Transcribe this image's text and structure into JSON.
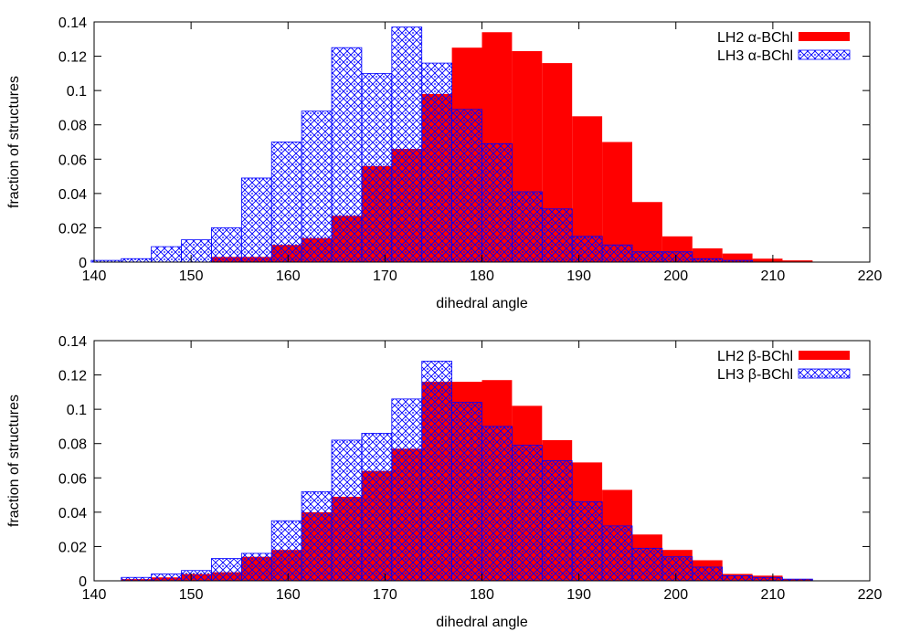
{
  "chart_data": [
    {
      "type": "bar",
      "xlabel": "dihedral angle",
      "ylabel": "fraction of structures",
      "xlim": [
        140,
        220
      ],
      "ylim": [
        0,
        0.14
      ],
      "x_ticks": [
        "140",
        "150",
        "160",
        "170",
        "180",
        "190",
        "200",
        "210",
        "220"
      ],
      "y_ticks": [
        "0",
        "0.02",
        "0.04",
        "0.06",
        "0.08",
        "0.1",
        "0.12",
        "0.14"
      ],
      "grid": false,
      "legend_position": "top-right",
      "bin_width": 3.1,
      "bin_starts": [
        139.7,
        142.8,
        145.9,
        149.0,
        152.1,
        155.2,
        158.3,
        161.4,
        164.5,
        167.6,
        170.7,
        173.8,
        176.9,
        180.0,
        183.1,
        186.2,
        189.3,
        192.4,
        195.5,
        198.6,
        201.7,
        204.8,
        207.9,
        211.0,
        214.1
      ],
      "series": [
        {
          "name": "LH2 α-BChl",
          "color": "#ff0000",
          "fill": "solid",
          "values": [
            0,
            0,
            0,
            0,
            0.003,
            0.003,
            0.01,
            0.014,
            0.027,
            0.056,
            0.066,
            0.098,
            0.125,
            0.134,
            0.123,
            0.116,
            0.085,
            0.07,
            0.035,
            0.015,
            0.008,
            0.005,
            0.002,
            0.001,
            0
          ]
        },
        {
          "name": "LH3 α-BChl",
          "color": "#0000ff",
          "fill": "crosshatch",
          "values": [
            0.001,
            0.002,
            0.009,
            0.013,
            0.02,
            0.049,
            0.07,
            0.088,
            0.125,
            0.11,
            0.137,
            0.116,
            0.089,
            0.069,
            0.041,
            0.031,
            0.015,
            0.01,
            0.006,
            0.006,
            0.002,
            0.001,
            0,
            0,
            0
          ]
        }
      ]
    },
    {
      "type": "bar",
      "xlabel": "dihedral angle",
      "ylabel": "fraction of structures",
      "xlim": [
        140,
        220
      ],
      "ylim": [
        0,
        0.14
      ],
      "x_ticks": [
        "140",
        "150",
        "160",
        "170",
        "180",
        "190",
        "200",
        "210",
        "220"
      ],
      "y_ticks": [
        "0",
        "0.02",
        "0.04",
        "0.06",
        "0.08",
        "0.1",
        "0.12",
        "0.14"
      ],
      "grid": false,
      "legend_position": "top-right",
      "bin_width": 3.1,
      "bin_starts": [
        139.7,
        142.8,
        145.9,
        149.0,
        152.1,
        155.2,
        158.3,
        161.4,
        164.5,
        167.6,
        170.7,
        173.8,
        176.9,
        180.0,
        183.1,
        186.2,
        189.3,
        192.4,
        195.5,
        198.6,
        201.7,
        204.8,
        207.9,
        211.0,
        214.1
      ],
      "series": [
        {
          "name": "LH2 β-BChl",
          "color": "#ff0000",
          "fill": "solid",
          "values": [
            0,
            0.001,
            0.002,
            0.004,
            0.005,
            0.014,
            0.018,
            0.04,
            0.049,
            0.064,
            0.077,
            0.116,
            0.116,
            0.117,
            0.102,
            0.082,
            0.069,
            0.053,
            0.027,
            0.018,
            0.012,
            0.004,
            0.003,
            0.001,
            0
          ]
        },
        {
          "name": "LH3 β-BChl",
          "color": "#0000ff",
          "fill": "crosshatch",
          "values": [
            0,
            0.002,
            0.004,
            0.006,
            0.013,
            0.016,
            0.035,
            0.052,
            0.082,
            0.086,
            0.106,
            0.128,
            0.104,
            0.09,
            0.079,
            0.07,
            0.046,
            0.032,
            0.019,
            0.014,
            0.008,
            0.003,
            0.002,
            0.001,
            0
          ]
        }
      ]
    }
  ]
}
